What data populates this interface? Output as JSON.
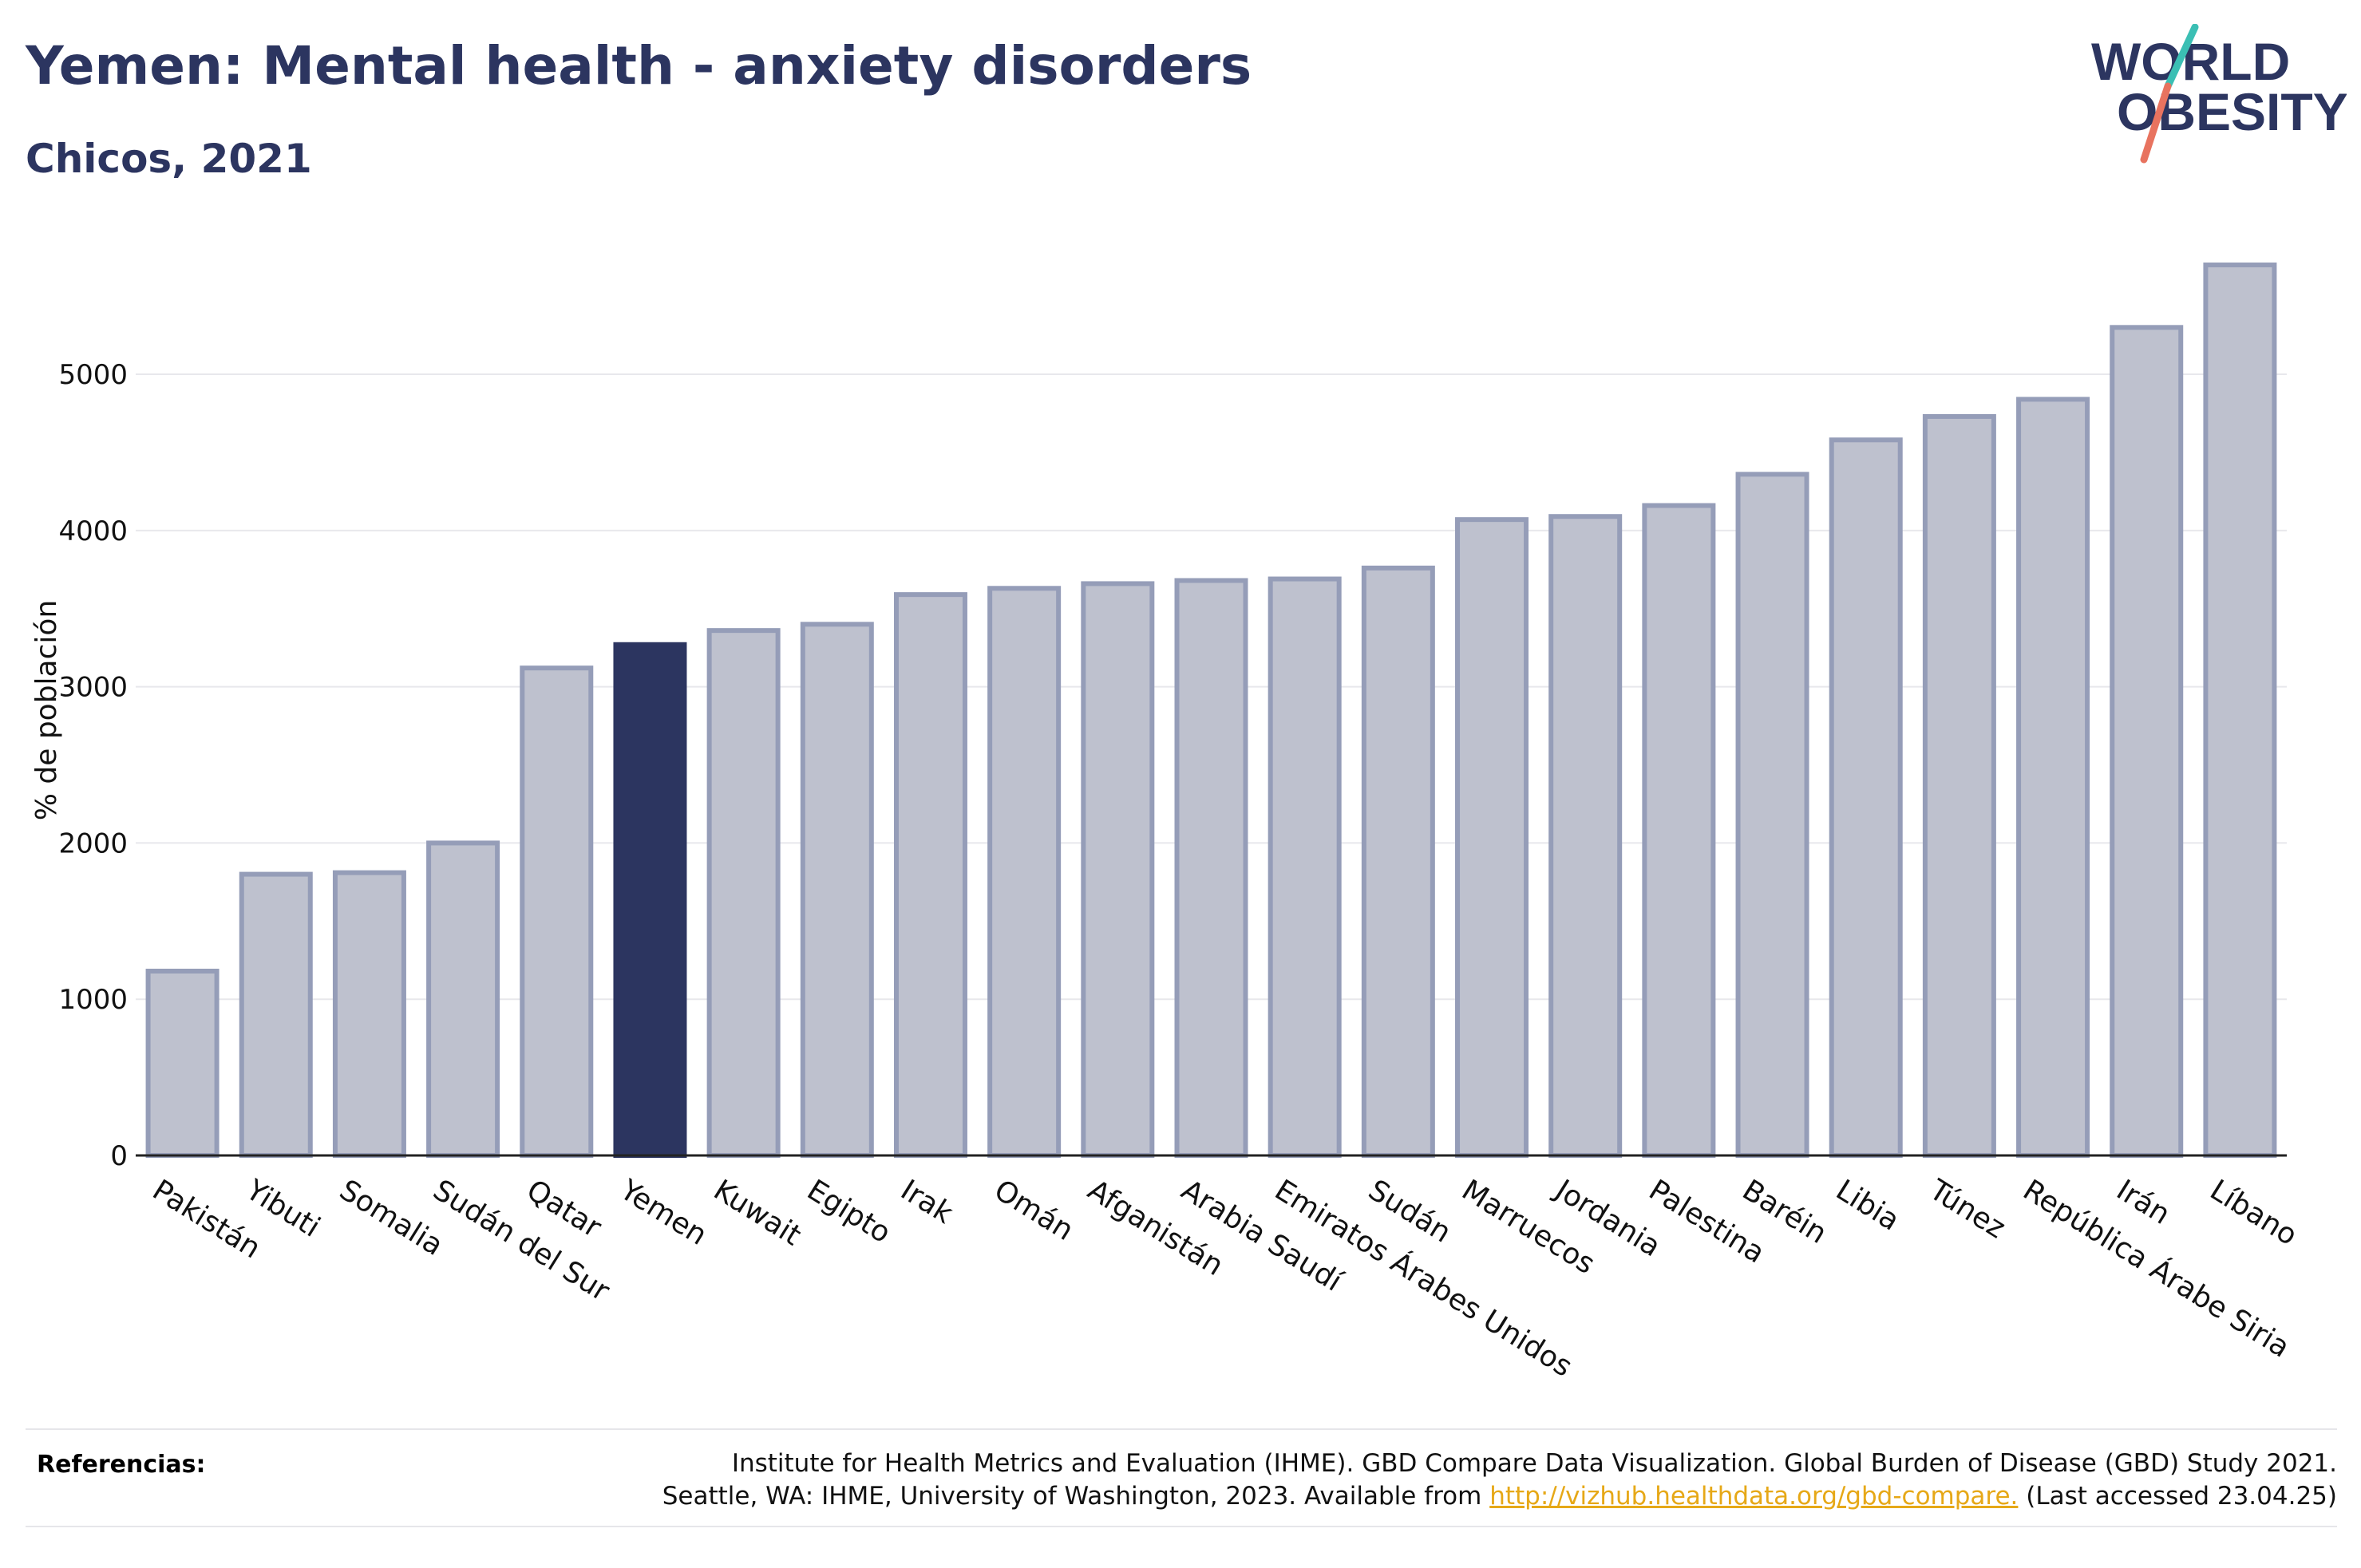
{
  "header": {
    "title": "Yemen: Mental health - anxiety disorders",
    "subtitle": "Chicos, 2021"
  },
  "logo": {
    "line1": "WORLD",
    "line2": "OBESITY"
  },
  "colors": {
    "text": "#2c3560",
    "highlight_bar": "#2c3560",
    "bar_fill": "#bec1ce",
    "bar_stroke": "#959db8",
    "grid": "#e8e8ec",
    "logo_teal": "#3bbfb4",
    "logo_coral": "#e8735f",
    "link": "#e6a817"
  },
  "chart_data": {
    "type": "bar",
    "ylabel": "% de población",
    "xlabel": "",
    "ylim": [
      0,
      5700
    ],
    "yticks": [
      0,
      1000,
      2000,
      3000,
      4000,
      5000
    ],
    "grid": true,
    "highlight": "Yemen",
    "categories": [
      "Pakistán",
      "Yibuti",
      "Somalia",
      "Sudán del Sur",
      "Qatar",
      "Yemen",
      "Kuwait",
      "Egipto",
      "Irak",
      "Omán",
      "Afganistán",
      "Arabia Saudí",
      "Emiratos Árabes Unidos",
      "Sudán",
      "Marruecos",
      "Jordania",
      "Palestina",
      "Baréin",
      "Libia",
      "Túnez",
      "República Árabe Siria",
      "Irán",
      "Líbano"
    ],
    "values": [
      1180,
      1800,
      1810,
      2000,
      3120,
      3270,
      3360,
      3400,
      3590,
      3630,
      3660,
      3680,
      3690,
      3760,
      4070,
      4090,
      4160,
      4360,
      4580,
      4730,
      4840,
      5300,
      5700
    ]
  },
  "footer": {
    "ref_label": "Referencias:",
    "ref_line1": "Institute for Health Metrics and Evaluation (IHME). GBD Compare Data Visualization. Global Burden of Disease (GBD) Study 2021.",
    "ref_line2_pre": "Seattle, WA: IHME, University of Washington, 2023. Available from ",
    "ref_link": "http://vizhub.healthdata.org/gbd-compare.",
    "ref_line2_post": " (Last accessed 23.04.25)"
  }
}
